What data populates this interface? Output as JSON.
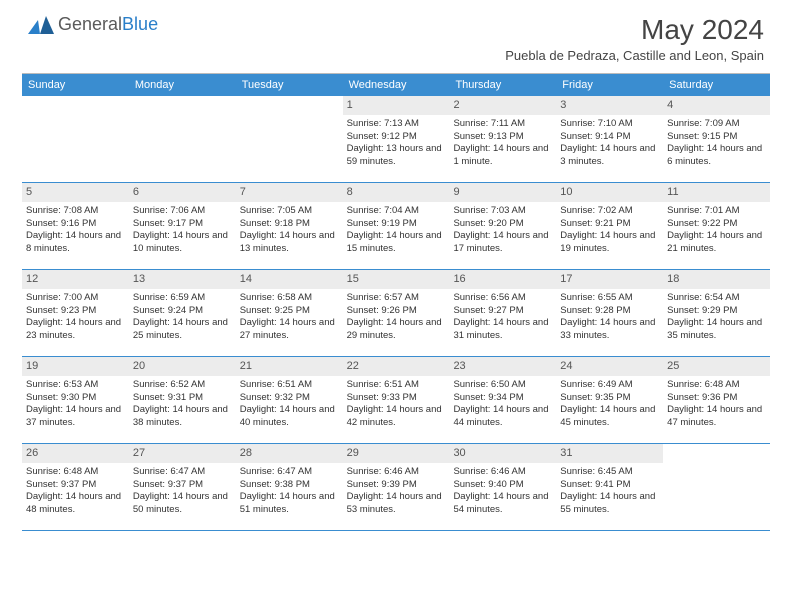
{
  "logo": {
    "text1": "General",
    "text2": "Blue"
  },
  "title": "May 2024",
  "location": "Puebla de Pedraza, Castille and Leon, Spain",
  "colors": {
    "header_bg": "#3a8dd0",
    "header_text": "#ffffff",
    "daynum_bg": "#ececec",
    "row_border": "#3a8dd0",
    "body_text": "#333333"
  },
  "weekdays": [
    "Sunday",
    "Monday",
    "Tuesday",
    "Wednesday",
    "Thursday",
    "Friday",
    "Saturday"
  ],
  "weeks": [
    [
      {
        "n": "",
        "empty": true
      },
      {
        "n": "",
        "empty": true
      },
      {
        "n": "",
        "empty": true
      },
      {
        "n": "1",
        "sr": "7:13 AM",
        "ss": "9:12 PM",
        "dl": "13 hours and 59 minutes."
      },
      {
        "n": "2",
        "sr": "7:11 AM",
        "ss": "9:13 PM",
        "dl": "14 hours and 1 minute."
      },
      {
        "n": "3",
        "sr": "7:10 AM",
        "ss": "9:14 PM",
        "dl": "14 hours and 3 minutes."
      },
      {
        "n": "4",
        "sr": "7:09 AM",
        "ss": "9:15 PM",
        "dl": "14 hours and 6 minutes."
      }
    ],
    [
      {
        "n": "5",
        "sr": "7:08 AM",
        "ss": "9:16 PM",
        "dl": "14 hours and 8 minutes."
      },
      {
        "n": "6",
        "sr": "7:06 AM",
        "ss": "9:17 PM",
        "dl": "14 hours and 10 minutes."
      },
      {
        "n": "7",
        "sr": "7:05 AM",
        "ss": "9:18 PM",
        "dl": "14 hours and 13 minutes."
      },
      {
        "n": "8",
        "sr": "7:04 AM",
        "ss": "9:19 PM",
        "dl": "14 hours and 15 minutes."
      },
      {
        "n": "9",
        "sr": "7:03 AM",
        "ss": "9:20 PM",
        "dl": "14 hours and 17 minutes."
      },
      {
        "n": "10",
        "sr": "7:02 AM",
        "ss": "9:21 PM",
        "dl": "14 hours and 19 minutes."
      },
      {
        "n": "11",
        "sr": "7:01 AM",
        "ss": "9:22 PM",
        "dl": "14 hours and 21 minutes."
      }
    ],
    [
      {
        "n": "12",
        "sr": "7:00 AM",
        "ss": "9:23 PM",
        "dl": "14 hours and 23 minutes."
      },
      {
        "n": "13",
        "sr": "6:59 AM",
        "ss": "9:24 PM",
        "dl": "14 hours and 25 minutes."
      },
      {
        "n": "14",
        "sr": "6:58 AM",
        "ss": "9:25 PM",
        "dl": "14 hours and 27 minutes."
      },
      {
        "n": "15",
        "sr": "6:57 AM",
        "ss": "9:26 PM",
        "dl": "14 hours and 29 minutes."
      },
      {
        "n": "16",
        "sr": "6:56 AM",
        "ss": "9:27 PM",
        "dl": "14 hours and 31 minutes."
      },
      {
        "n": "17",
        "sr": "6:55 AM",
        "ss": "9:28 PM",
        "dl": "14 hours and 33 minutes."
      },
      {
        "n": "18",
        "sr": "6:54 AM",
        "ss": "9:29 PM",
        "dl": "14 hours and 35 minutes."
      }
    ],
    [
      {
        "n": "19",
        "sr": "6:53 AM",
        "ss": "9:30 PM",
        "dl": "14 hours and 37 minutes."
      },
      {
        "n": "20",
        "sr": "6:52 AM",
        "ss": "9:31 PM",
        "dl": "14 hours and 38 minutes."
      },
      {
        "n": "21",
        "sr": "6:51 AM",
        "ss": "9:32 PM",
        "dl": "14 hours and 40 minutes."
      },
      {
        "n": "22",
        "sr": "6:51 AM",
        "ss": "9:33 PM",
        "dl": "14 hours and 42 minutes."
      },
      {
        "n": "23",
        "sr": "6:50 AM",
        "ss": "9:34 PM",
        "dl": "14 hours and 44 minutes."
      },
      {
        "n": "24",
        "sr": "6:49 AM",
        "ss": "9:35 PM",
        "dl": "14 hours and 45 minutes."
      },
      {
        "n": "25",
        "sr": "6:48 AM",
        "ss": "9:36 PM",
        "dl": "14 hours and 47 minutes."
      }
    ],
    [
      {
        "n": "26",
        "sr": "6:48 AM",
        "ss": "9:37 PM",
        "dl": "14 hours and 48 minutes."
      },
      {
        "n": "27",
        "sr": "6:47 AM",
        "ss": "9:37 PM",
        "dl": "14 hours and 50 minutes."
      },
      {
        "n": "28",
        "sr": "6:47 AM",
        "ss": "9:38 PM",
        "dl": "14 hours and 51 minutes."
      },
      {
        "n": "29",
        "sr": "6:46 AM",
        "ss": "9:39 PM",
        "dl": "14 hours and 53 minutes."
      },
      {
        "n": "30",
        "sr": "6:46 AM",
        "ss": "9:40 PM",
        "dl": "14 hours and 54 minutes."
      },
      {
        "n": "31",
        "sr": "6:45 AM",
        "ss": "9:41 PM",
        "dl": "14 hours and 55 minutes."
      },
      {
        "n": "",
        "empty": true
      }
    ]
  ],
  "labels": {
    "sunrise": "Sunrise: ",
    "sunset": "Sunset: ",
    "daylight": "Daylight: "
  }
}
